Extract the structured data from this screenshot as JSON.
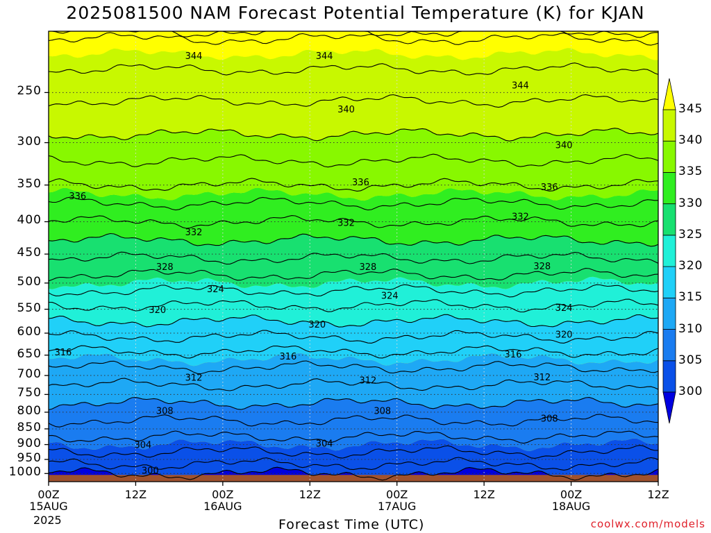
{
  "title": "2025081500 NAM Forecast Potential Temperature (K) for KJAN",
  "xlabel": "Forecast Time (UTC)",
  "credit": "coolwx.com/models",
  "chart_data": {
    "type": "contour",
    "variable": "Potential Temperature",
    "units": "K",
    "station": "KJAN",
    "model": "NAM",
    "init": "2025081500",
    "year_label": "2025",
    "y_ticks": [
      250,
      300,
      350,
      400,
      450,
      500,
      550,
      600,
      650,
      700,
      750,
      800,
      850,
      900,
      950,
      1000
    ],
    "y_range_hpa": [
      1030,
      200
    ],
    "x_ticks": [
      {
        "label": "00Z",
        "sub": "15AUG",
        "hour": 0
      },
      {
        "label": "12Z",
        "sub": "",
        "hour": 12
      },
      {
        "label": "00Z",
        "sub": "16AUG",
        "hour": 24
      },
      {
        "label": "12Z",
        "sub": "",
        "hour": 36
      },
      {
        "label": "00Z",
        "sub": "17AUG",
        "hour": 48
      },
      {
        "label": "12Z",
        "sub": "",
        "hour": 60
      },
      {
        "label": "00Z",
        "sub": "18AUG",
        "hour": 72
      },
      {
        "label": "12Z",
        "sub": "",
        "hour": 84
      }
    ],
    "x_range_hours": [
      0,
      84
    ],
    "colorbar": {
      "levels": [
        300,
        305,
        310,
        315,
        320,
        325,
        330,
        335,
        340,
        345
      ],
      "colors": [
        "#0000e0",
        "#0a50e8",
        "#1a7cf0",
        "#1ea8f5",
        "#20d0f8",
        "#20f0d8",
        "#18e070",
        "#30ee20",
        "#88f800",
        "#c8f800",
        "#ffff00"
      ]
    },
    "contour_labels": [
      {
        "value": 344,
        "hour": 20,
        "p": 219
      },
      {
        "value": 344,
        "hour": 38,
        "p": 219
      },
      {
        "value": 344,
        "hour": 65,
        "p": 244
      },
      {
        "value": 340,
        "hour": 41,
        "p": 266
      },
      {
        "value": 340,
        "hour": 71,
        "p": 303
      },
      {
        "value": 336,
        "hour": 4,
        "p": 365
      },
      {
        "value": 336,
        "hour": 43,
        "p": 347
      },
      {
        "value": 336,
        "hour": 69,
        "p": 353
      },
      {
        "value": 332,
        "hour": 20,
        "p": 416
      },
      {
        "value": 332,
        "hour": 41,
        "p": 402
      },
      {
        "value": 332,
        "hour": 65,
        "p": 393
      },
      {
        "value": 328,
        "hour": 16,
        "p": 472
      },
      {
        "value": 328,
        "hour": 44,
        "p": 472
      },
      {
        "value": 328,
        "hour": 68,
        "p": 471
      },
      {
        "value": 324,
        "hour": 23,
        "p": 512
      },
      {
        "value": 324,
        "hour": 47,
        "p": 524
      },
      {
        "value": 324,
        "hour": 71,
        "p": 548
      },
      {
        "value": 320,
        "hour": 15,
        "p": 552
      },
      {
        "value": 320,
        "hour": 37,
        "p": 582
      },
      {
        "value": 320,
        "hour": 71,
        "p": 604
      },
      {
        "value": 316,
        "hour": 2,
        "p": 644
      },
      {
        "value": 316,
        "hour": 33,
        "p": 654
      },
      {
        "value": 316,
        "hour": 64,
        "p": 649
      },
      {
        "value": 312,
        "hour": 20,
        "p": 706
      },
      {
        "value": 312,
        "hour": 44,
        "p": 713
      },
      {
        "value": 312,
        "hour": 68,
        "p": 705
      },
      {
        "value": 308,
        "hour": 16,
        "p": 797
      },
      {
        "value": 308,
        "hour": 46,
        "p": 797
      },
      {
        "value": 308,
        "hour": 69,
        "p": 820
      },
      {
        "value": 304,
        "hour": 13,
        "p": 902
      },
      {
        "value": 304,
        "hour": 38,
        "p": 897
      },
      {
        "value": 300,
        "hour": 14,
        "p": 990
      }
    ]
  }
}
